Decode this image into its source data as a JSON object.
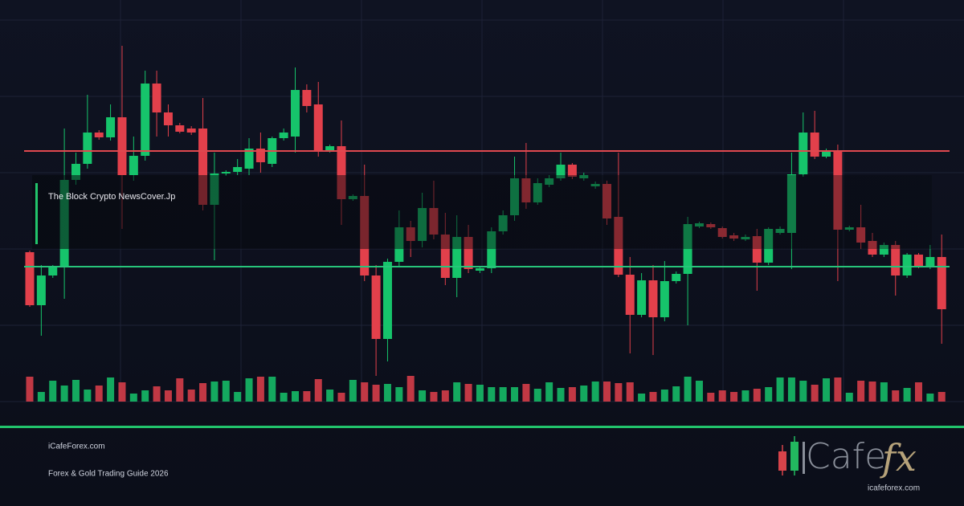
{
  "overlay": {
    "caption": "The Block Crypto NewsCover.Jp"
  },
  "footer": {
    "site": "iCafeForex.com",
    "tagline": "Forex & Gold Trading Guide 2026"
  },
  "logo": {
    "word": "Cafe",
    "mark": "fx",
    "url": "icafeforex.com"
  }
}
